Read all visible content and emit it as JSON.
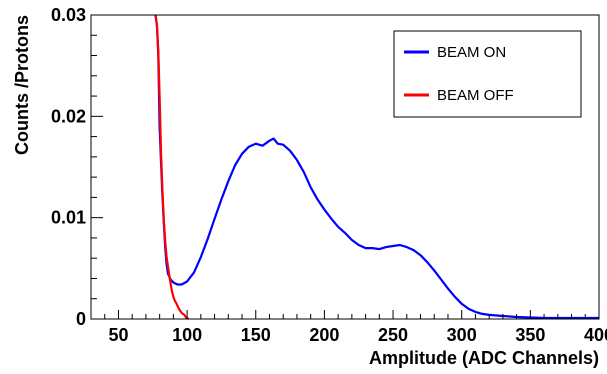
{
  "chart_data": {
    "type": "line",
    "title": "",
    "xlabel": "Amplitude (ADC Channels)",
    "ylabel": "Counts /Protons",
    "xlim": [
      30,
      400
    ],
    "ylim": [
      0,
      0.03
    ],
    "x_ticks": [
      50,
      100,
      150,
      200,
      250,
      300,
      350,
      400
    ],
    "x_tick_labels": [
      "50",
      "100",
      "150",
      "200",
      "250",
      "300",
      "350",
      "400"
    ],
    "y_ticks": [
      0,
      0.01,
      0.02,
      0.03
    ],
    "y_tick_labels": [
      "0",
      "0.01",
      "0.02",
      "0.03"
    ],
    "grid": false,
    "legend_position": "top-right",
    "series": [
      {
        "name": "BEAM ON",
        "color": "#0000ff",
        "points": [
          [
            77,
            0.03
          ],
          [
            78,
            0.029
          ],
          [
            79,
            0.026
          ],
          [
            80,
            0.019
          ],
          [
            81,
            0.0155
          ],
          [
            82,
            0.0122
          ],
          [
            83,
            0.0095
          ],
          [
            84,
            0.0072
          ],
          [
            85,
            0.0055
          ],
          [
            86,
            0.0045
          ],
          [
            88,
            0.0039
          ],
          [
            90,
            0.0036
          ],
          [
            93,
            0.0034
          ],
          [
            96,
            0.0034
          ],
          [
            100,
            0.0037
          ],
          [
            105,
            0.0046
          ],
          [
            110,
            0.0061
          ],
          [
            115,
            0.0079
          ],
          [
            120,
            0.0099
          ],
          [
            125,
            0.0118
          ],
          [
            130,
            0.0136
          ],
          [
            135,
            0.0152
          ],
          [
            140,
            0.0163
          ],
          [
            145,
            0.017
          ],
          [
            150,
            0.0173
          ],
          [
            155,
            0.0171
          ],
          [
            160,
            0.0176
          ],
          [
            163,
            0.0178
          ],
          [
            166,
            0.0173
          ],
          [
            170,
            0.0172
          ],
          [
            175,
            0.0166
          ],
          [
            180,
            0.0157
          ],
          [
            185,
            0.0145
          ],
          [
            190,
            0.013
          ],
          [
            195,
            0.0118
          ],
          [
            200,
            0.0108
          ],
          [
            205,
            0.0099
          ],
          [
            210,
            0.0091
          ],
          [
            215,
            0.0085
          ],
          [
            220,
            0.0078
          ],
          [
            225,
            0.0073
          ],
          [
            230,
            0.007
          ],
          [
            235,
            0.007
          ],
          [
            240,
            0.0069
          ],
          [
            245,
            0.0071
          ],
          [
            250,
            0.0072
          ],
          [
            255,
            0.0073
          ],
          [
            260,
            0.0071
          ],
          [
            265,
            0.0068
          ],
          [
            270,
            0.0063
          ],
          [
            275,
            0.0056
          ],
          [
            280,
            0.0048
          ],
          [
            285,
            0.0039
          ],
          [
            290,
            0.003
          ],
          [
            295,
            0.0022
          ],
          [
            300,
            0.0015
          ],
          [
            305,
            0.001
          ],
          [
            310,
            0.0007
          ],
          [
            315,
            0.0005
          ],
          [
            320,
            0.0004
          ],
          [
            330,
            0.0003
          ],
          [
            340,
            0.0002
          ],
          [
            350,
            0.00015
          ],
          [
            360,
            0.0001
          ],
          [
            370,
            0.0001
          ],
          [
            380,
            0.0001
          ],
          [
            390,
            0.0001
          ],
          [
            400,
            0.0001
          ]
        ]
      },
      {
        "name": "BEAM OFF",
        "color": "#ff0000",
        "points": [
          [
            77,
            0.03
          ],
          [
            78,
            0.029
          ],
          [
            79,
            0.0265
          ],
          [
            80,
            0.022
          ],
          [
            81,
            0.0165
          ],
          [
            82,
            0.0128
          ],
          [
            83,
            0.0098
          ],
          [
            84,
            0.0078
          ],
          [
            85,
            0.0062
          ],
          [
            86,
            0.0052
          ],
          [
            87,
            0.0043
          ],
          [
            88,
            0.0035
          ],
          [
            89,
            0.0027
          ],
          [
            90,
            0.0022
          ],
          [
            91,
            0.0018
          ],
          [
            92,
            0.0016
          ],
          [
            93,
            0.0013
          ],
          [
            94,
            0.001
          ],
          [
            95,
            0.0008
          ],
          [
            96,
            0.0006
          ],
          [
            97,
            0.0005
          ],
          [
            98,
            0.0004
          ],
          [
            99,
            0.0002
          ],
          [
            100,
            0.0001
          ],
          [
            101,
            0
          ]
        ]
      }
    ]
  }
}
